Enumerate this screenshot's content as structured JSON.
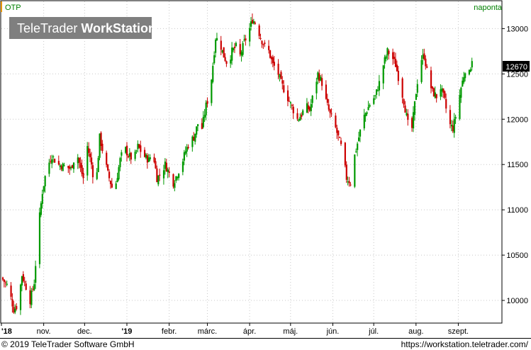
{
  "chart_data": {
    "type": "ohlc",
    "title": "OTP",
    "frequency_label": "naponta",
    "watermark": {
      "light": "TeleTrader ",
      "bold": "WorkStation"
    },
    "last_value_label": "12670",
    "y_ticks": [
      10000,
      10500,
      11000,
      11500,
      12000,
      12500,
      13000
    ],
    "ylim": [
      9750,
      13300
    ],
    "x_ticks": [
      {
        "label": "'18",
        "day": 0
      },
      {
        "label": "nov.",
        "day": 31
      },
      {
        "label": "dec.",
        "day": 61
      },
      {
        "label": "'19",
        "day": 92
      },
      {
        "label": "febr.",
        "day": 123
      },
      {
        "label": "márc.",
        "day": 151
      },
      {
        "label": "ápr.",
        "day": 182
      },
      {
        "label": "máj.",
        "day": 212
      },
      {
        "label": "jún.",
        "day": 243
      },
      {
        "label": "júl.",
        "day": 273
      },
      {
        "label": "aug.",
        "day": 304
      },
      {
        "label": "szept.",
        "day": 335
      }
    ],
    "xlim": [
      0,
      367
    ],
    "anchors": [
      [
        0,
        10250
      ],
      [
        5,
        10150
      ],
      [
        9,
        9900
      ],
      [
        12,
        9950
      ],
      [
        15,
        10280
      ],
      [
        18,
        10150
      ],
      [
        21,
        10000
      ],
      [
        24,
        10200
      ],
      [
        27,
        10800
      ],
      [
        30,
        11200
      ],
      [
        33,
        11450
      ],
      [
        37,
        11600
      ],
      [
        41,
        11500
      ],
      [
        46,
        11480
      ],
      [
        51,
        11450
      ],
      [
        55,
        11650
      ],
      [
        58,
        11450
      ],
      [
        61,
        11300
      ],
      [
        63,
        11700
      ],
      [
        66,
        11500
      ],
      [
        69,
        11200
      ],
      [
        72,
        11800
      ],
      [
        75,
        11600
      ],
      [
        78,
        11400
      ],
      [
        81,
        11250
      ],
      [
        84,
        11300
      ],
      [
        87,
        11550
      ],
      [
        90,
        11700
      ],
      [
        93,
        11600
      ],
      [
        97,
        11550
      ],
      [
        100,
        11700
      ],
      [
        104,
        11600
      ],
      [
        108,
        11550
      ],
      [
        111,
        11650
      ],
      [
        114,
        11350
      ],
      [
        117,
        11400
      ],
      [
        120,
        11500
      ],
      [
        123,
        11400
      ],
      [
        126,
        11300
      ],
      [
        129,
        11400
      ],
      [
        132,
        11500
      ],
      [
        135,
        11650
      ],
      [
        138,
        11750
      ],
      [
        141,
        11800
      ],
      [
        144,
        11950
      ],
      [
        147,
        11900
      ],
      [
        150,
        12150
      ],
      [
        153,
        12300
      ],
      [
        155,
        12600
      ],
      [
        157,
        12900
      ],
      [
        160,
        12850
      ],
      [
        163,
        12700
      ],
      [
        166,
        12600
      ],
      [
        169,
        12750
      ],
      [
        172,
        12800
      ],
      [
        175,
        12700
      ],
      [
        178,
        12850
      ],
      [
        181,
        12950
      ],
      [
        184,
        13100
      ],
      [
        187,
        13050
      ],
      [
        190,
        12900
      ],
      [
        193,
        12800
      ],
      [
        196,
        12750
      ],
      [
        199,
        12600
      ],
      [
        202,
        12550
      ],
      [
        205,
        12400
      ],
      [
        208,
        12300
      ],
      [
        211,
        12200
      ],
      [
        214,
        12100
      ],
      [
        217,
        12000
      ],
      [
        220,
        12050
      ],
      [
        223,
        12150
      ],
      [
        226,
        12100
      ],
      [
        229,
        12300
      ],
      [
        232,
        12500
      ],
      [
        235,
        12400
      ],
      [
        238,
        12200
      ],
      [
        241,
        12050
      ],
      [
        244,
        11950
      ],
      [
        247,
        11800
      ],
      [
        250,
        11650
      ],
      [
        253,
        11350
      ],
      [
        256,
        11300
      ],
      [
        259,
        11600
      ],
      [
        262,
        11800
      ],
      [
        265,
        12000
      ],
      [
        268,
        12100
      ],
      [
        271,
        12200
      ],
      [
        274,
        12250
      ],
      [
        277,
        12400
      ],
      [
        280,
        12600
      ],
      [
        283,
        12750
      ],
      [
        286,
        12700
      ],
      [
        289,
        12600
      ],
      [
        292,
        12400
      ],
      [
        295,
        12200
      ],
      [
        298,
        11950
      ],
      [
        301,
        11900
      ],
      [
        304,
        12300
      ],
      [
        307,
        12650
      ],
      [
        310,
        12700
      ],
      [
        313,
        12450
      ],
      [
        316,
        12300
      ],
      [
        319,
        12250
      ],
      [
        322,
        12350
      ],
      [
        325,
        12200
      ],
      [
        328,
        11950
      ],
      [
        331,
        11900
      ],
      [
        334,
        12100
      ],
      [
        337,
        12350
      ],
      [
        340,
        12550
      ],
      [
        343,
        12500
      ],
      [
        345,
        12670
      ]
    ]
  },
  "footer": {
    "left": "© 2019 TeleTrader Software GmbH",
    "right": "https://workstation.teletrader.com/"
  }
}
